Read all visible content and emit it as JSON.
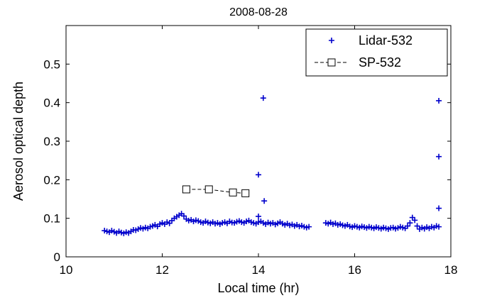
{
  "chart_data": {
    "type": "scatter",
    "title": "2008-08-28",
    "xlabel": "Local time (hr)",
    "ylabel": "Aerosol optical depth",
    "xlim": [
      10,
      18
    ],
    "ylim": [
      0,
      0.6
    ],
    "xticks": [
      10,
      12,
      14,
      16,
      18
    ],
    "yticks": [
      0,
      0.1,
      0.2,
      0.3,
      0.4,
      0.5
    ],
    "grid": false,
    "legend_position": "top-right",
    "series": [
      {
        "name": "Lidar-532",
        "marker": "plus",
        "color": "#0000cc",
        "x": [
          10.8,
          10.85,
          10.9,
          10.95,
          11.0,
          11.05,
          11.1,
          11.15,
          11.2,
          11.25,
          11.3,
          11.35,
          11.4,
          11.45,
          11.5,
          11.55,
          11.6,
          11.65,
          11.7,
          11.75,
          11.8,
          11.85,
          11.9,
          11.95,
          12.0,
          12.05,
          12.1,
          12.15,
          12.2,
          12.25,
          12.3,
          12.35,
          12.4,
          12.45,
          12.5,
          12.55,
          12.6,
          12.65,
          12.7,
          12.75,
          12.8,
          12.85,
          12.9,
          12.95,
          13.0,
          13.05,
          13.1,
          13.15,
          13.2,
          13.25,
          13.3,
          13.35,
          13.4,
          13.45,
          13.5,
          13.55,
          13.6,
          13.65,
          13.7,
          13.75,
          13.8,
          13.85,
          13.9,
          13.95,
          14.0,
          14.05,
          14.1,
          14.15,
          14.2,
          14.25,
          14.3,
          14.35,
          14.4,
          14.45,
          14.5,
          14.55,
          14.6,
          14.65,
          14.7,
          14.75,
          14.8,
          14.85,
          14.9,
          14.95,
          15.0,
          15.05,
          15.4,
          15.45,
          15.5,
          15.55,
          15.6,
          15.65,
          15.7,
          15.75,
          15.8,
          15.85,
          15.9,
          15.95,
          16.0,
          16.05,
          16.1,
          16.15,
          16.2,
          16.25,
          16.3,
          16.35,
          16.4,
          16.45,
          16.5,
          16.55,
          16.6,
          16.65,
          16.7,
          16.75,
          16.8,
          16.85,
          16.9,
          16.95,
          17.0,
          17.05,
          17.1,
          17.15,
          17.2,
          17.25,
          17.3,
          17.35,
          17.4,
          17.45,
          17.5,
          17.55,
          17.6,
          17.65,
          17.7,
          17.75,
          14.0,
          14.0,
          14.12,
          14.1,
          17.75,
          17.75,
          17.75
        ],
        "y": [
          0.068,
          0.066,
          0.064,
          0.068,
          0.065,
          0.062,
          0.066,
          0.063,
          0.061,
          0.064,
          0.062,
          0.066,
          0.07,
          0.069,
          0.072,
          0.075,
          0.073,
          0.076,
          0.074,
          0.078,
          0.08,
          0.083,
          0.079,
          0.085,
          0.088,
          0.085,
          0.09,
          0.087,
          0.094,
          0.1,
          0.104,
          0.108,
          0.112,
          0.106,
          0.098,
          0.094,
          0.096,
          0.092,
          0.095,
          0.093,
          0.09,
          0.088,
          0.092,
          0.089,
          0.087,
          0.09,
          0.086,
          0.088,
          0.085,
          0.088,
          0.09,
          0.087,
          0.092,
          0.089,
          0.088,
          0.091,
          0.093,
          0.09,
          0.088,
          0.092,
          0.094,
          0.09,
          0.088,
          0.086,
          0.09,
          0.092,
          0.088,
          0.085,
          0.089,
          0.086,
          0.088,
          0.084,
          0.087,
          0.09,
          0.086,
          0.083,
          0.086,
          0.082,
          0.084,
          0.08,
          0.083,
          0.079,
          0.081,
          0.078,
          0.076,
          0.078,
          0.088,
          0.086,
          0.089,
          0.085,
          0.087,
          0.083,
          0.085,
          0.082,
          0.08,
          0.083,
          0.079,
          0.077,
          0.08,
          0.078,
          0.076,
          0.079,
          0.077,
          0.075,
          0.078,
          0.076,
          0.074,
          0.077,
          0.075,
          0.073,
          0.076,
          0.074,
          0.072,
          0.075,
          0.076,
          0.073,
          0.075,
          0.078,
          0.076,
          0.074,
          0.08,
          0.088,
          0.102,
          0.095,
          0.08,
          0.072,
          0.076,
          0.073,
          0.077,
          0.074,
          0.078,
          0.076,
          0.08,
          0.078,
          0.105,
          0.213,
          0.145,
          0.412,
          0.126,
          0.26,
          0.405
        ]
      },
      {
        "name": "SP-532",
        "marker": "square",
        "line": "dash",
        "color": "#000000",
        "x": [
          12.5,
          12.97,
          13.47,
          13.73
        ],
        "y": [
          0.175,
          0.175,
          0.167,
          0.165
        ]
      }
    ]
  }
}
